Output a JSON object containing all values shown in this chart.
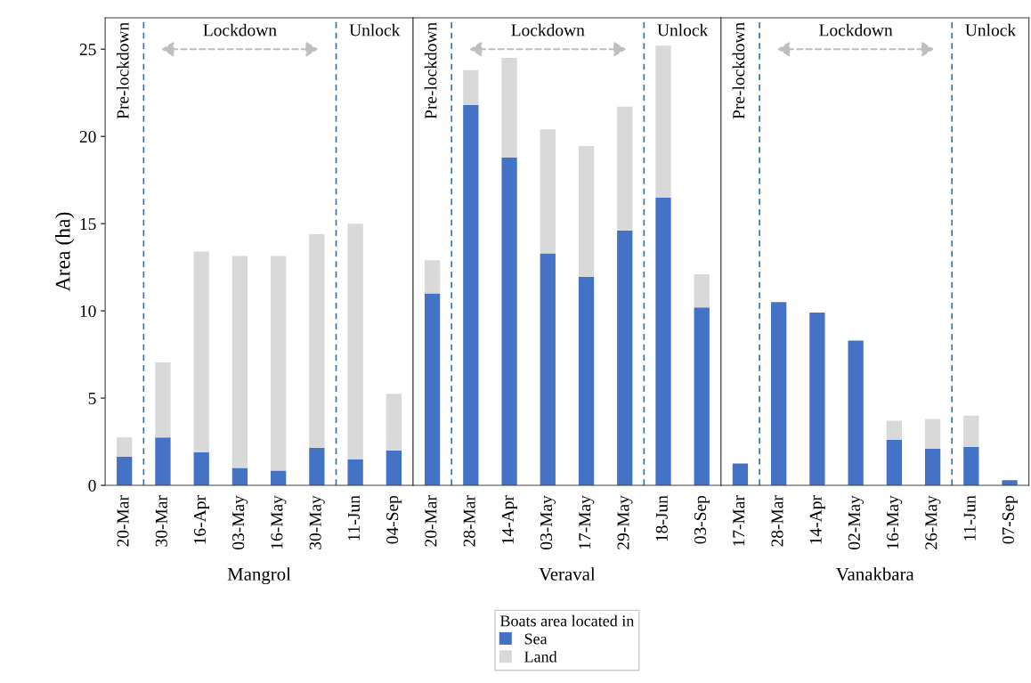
{
  "chart_data": [
    {
      "type": "bar",
      "stacked": true,
      "xlabel": "Mangrol",
      "ylabel": "Area (ha)",
      "categories": [
        "20-Mar",
        "30-Mar",
        "16-Apr",
        "03-May",
        "16-May",
        "30-May",
        "11-Jun",
        "04-Sep"
      ],
      "series": [
        {
          "color": "#4472c4",
          "values": [
            1.65,
            2.75,
            1.9,
            1.0,
            0.85,
            2.15,
            1.5,
            2.0
          ]
        },
        {
          "color": "#d9d9d9",
          "values": [
            1.1,
            4.3,
            11.5,
            12.15,
            12.3,
            12.25,
            13.5,
            3.25
          ]
        }
      ],
      "ylim": [
        0,
        26.8
      ],
      "yticks": [
        0,
        5,
        10,
        15,
        20,
        25
      ],
      "annotations": [
        "Pre-lockdown",
        "Lockdown",
        "Unlock"
      ]
    },
    {
      "type": "bar",
      "stacked": true,
      "xlabel": "Veraval",
      "legend_title": "Boats area located in",
      "legend": "bottom",
      "tick_labels": "x",
      "categories": [
        "20-Mar",
        "28-Mar",
        "14-Apr",
        "03-May",
        "17-May",
        "29-May",
        "18-Jun",
        "03-Sep"
      ],
      "series": [
        {
          "name": "Sea",
          "color": "#4472c4",
          "values": [
            11.0,
            21.8,
            18.8,
            13.3,
            11.95,
            14.6,
            16.5,
            10.2
          ]
        },
        {
          "name": "Land",
          "color": "#d9d9d9",
          "values": [
            1.9,
            2.0,
            5.7,
            7.1,
            7.5,
            7.1,
            8.7,
            1.9
          ]
        }
      ],
      "ylim": [
        0,
        26.8
      ],
      "yticks": [
        0,
        5,
        10,
        15,
        20,
        25
      ],
      "annotations": [
        "Pre-lockdown",
        "Lockdown",
        "Unlock"
      ]
    },
    {
      "type": "bar",
      "stacked": true,
      "xlabel": "Vanakbara",
      "tick_labels": "x",
      "categories": [
        "17-Mar",
        "28-Mar",
        "14-Apr",
        "02-May",
        "16-May",
        "26-May",
        "11-Jun",
        "07-Sep"
      ],
      "series": [
        {
          "color": "#4472c4",
          "values": [
            1.25,
            10.5,
            9.9,
            8.3,
            2.6,
            2.1,
            2.2,
            0.3
          ]
        },
        {
          "color": "#d9d9d9",
          "values": [
            0,
            0,
            0,
            0,
            1.1,
            1.7,
            1.8,
            0
          ]
        }
      ],
      "ylim": [
        0,
        26.8
      ],
      "yticks": [
        0,
        5,
        10,
        15,
        20,
        25
      ],
      "annotations": [
        "Pre-lockdown",
        "Lockdown",
        "Unlock"
      ]
    }
  ]
}
